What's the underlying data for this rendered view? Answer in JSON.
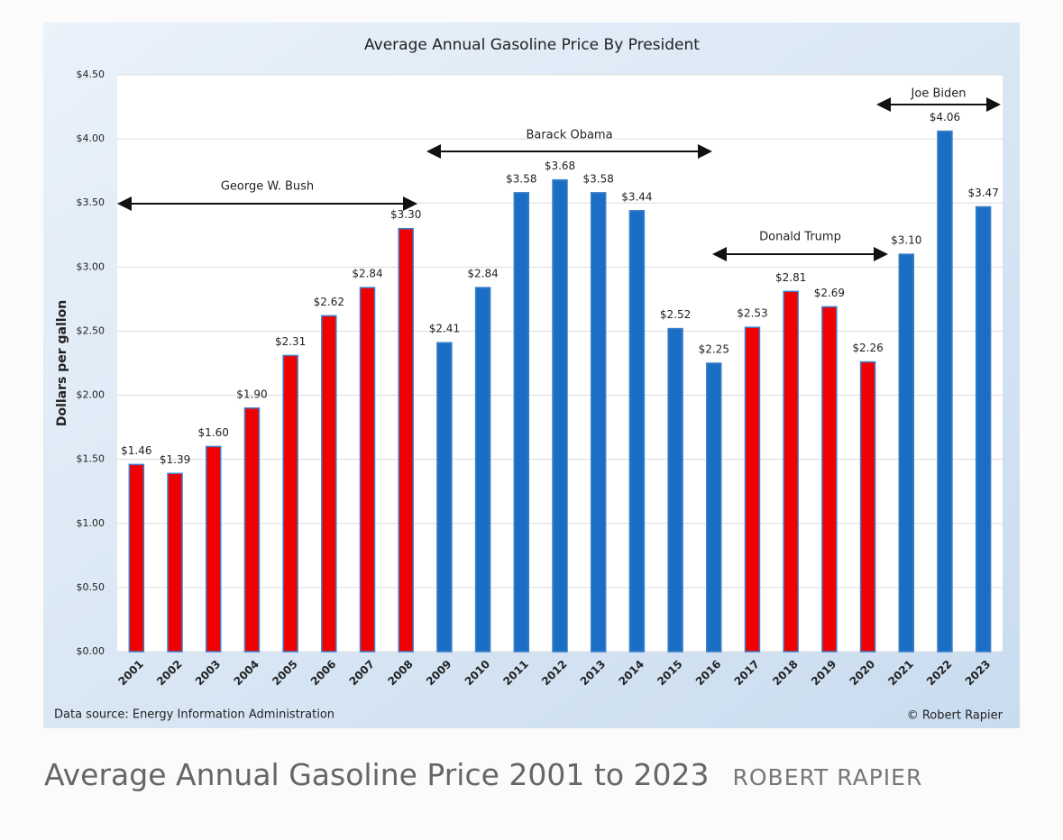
{
  "chart_data": {
    "type": "bar",
    "title": "Average Annual Gasoline Price By President",
    "y_label": "Dollars per gallon",
    "categories": [
      "2001",
      "2002",
      "2003",
      "2004",
      "2005",
      "2006",
      "2007",
      "2008",
      "2009",
      "2010",
      "2011",
      "2012",
      "2013",
      "2014",
      "2015",
      "2016",
      "2017",
      "2018",
      "2019",
      "2020",
      "2021",
      "2022",
      "2023"
    ],
    "values": [
      1.46,
      1.39,
      1.6,
      1.9,
      2.31,
      2.62,
      2.84,
      3.3,
      2.41,
      2.84,
      3.58,
      3.68,
      3.58,
      3.44,
      2.52,
      2.25,
      2.53,
      2.81,
      2.69,
      2.26,
      3.1,
      4.06,
      3.47
    ],
    "value_labels": [
      "$1.46",
      "$1.39",
      "$1.60",
      "$1.90",
      "$2.31",
      "$2.62",
      "$2.84",
      "$3.30",
      "$2.41",
      "$2.84",
      "$3.58",
      "$3.68",
      "$3.58",
      "$3.44",
      "$2.52",
      "$2.25",
      "$2.53",
      "$2.81",
      "$2.69",
      "$2.26",
      "$3.10",
      "$4.06",
      "$3.47"
    ],
    "colors": [
      "#f00000",
      "#f00000",
      "#f00000",
      "#f00000",
      "#f00000",
      "#f00000",
      "#f00000",
      "#f00000",
      "#1a6fc4",
      "#1a6fc4",
      "#1a6fc4",
      "#1a6fc4",
      "#1a6fc4",
      "#1a6fc4",
      "#1a6fc4",
      "#1a6fc4",
      "#f00000",
      "#f00000",
      "#f00000",
      "#f00000",
      "#1a6fc4",
      "#1a6fc4",
      "#1a6fc4"
    ],
    "ylim": [
      0,
      4.5
    ],
    "yticks": [
      {
        "value": 0,
        "label": "$0.00"
      },
      {
        "value": 0.5,
        "label": "$0.50"
      },
      {
        "value": 1,
        "label": "$1.00"
      },
      {
        "value": 1.5,
        "label": "$1.50"
      },
      {
        "value": 2,
        "label": "$2.00"
      },
      {
        "value": 2.5,
        "label": "$2.50"
      },
      {
        "value": 3,
        "label": "$3.00"
      },
      {
        "value": 3.5,
        "label": "$3.50"
      },
      {
        "value": 4,
        "label": "$4.00"
      },
      {
        "value": 4.5,
        "label": "$4.50"
      }
    ],
    "grid": true,
    "annotations": [
      "George W. Bush",
      "Barack Obama",
      "Donald Trump",
      "Joe Biden"
    ],
    "source": "Data source: Energy Information Administration",
    "credit": "© Robert Rapier"
  },
  "caption": {
    "text": "Average Annual Gasoline Price 2001 to 2023",
    "byline": "ROBERT RAPIER"
  }
}
